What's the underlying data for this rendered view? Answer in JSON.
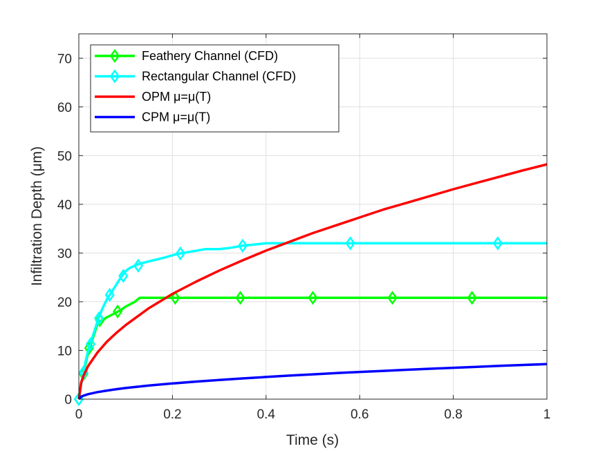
{
  "chart_data": {
    "type": "line",
    "xlabel": "Time (s)",
    "ylabel": "Infiltration Depth (μm)",
    "xlim": [
      0,
      1
    ],
    "ylim": [
      0,
      75
    ],
    "xticks": [
      0,
      0.2,
      0.4,
      0.6,
      0.8,
      1
    ],
    "xtick_labels": [
      "0",
      "0.2",
      "0.4",
      "0.6",
      "0.8",
      "1"
    ],
    "yticks": [
      0,
      10,
      20,
      30,
      40,
      50,
      60,
      70
    ],
    "ytick_labels": [
      "0",
      "10",
      "20",
      "30",
      "40",
      "50",
      "60",
      "70"
    ],
    "grid": true,
    "legend_position": "top-left",
    "series": [
      {
        "name": "Feathery Channel (CFD)",
        "color": "#00ff00",
        "marker": "diamond",
        "x": [
          0,
          0.005,
          0.01,
          0.015,
          0.02,
          0.025,
          0.03,
          0.035,
          0.04,
          0.045,
          0.05,
          0.06,
          0.07,
          0.08,
          0.09,
          0.1,
          0.11,
          0.12,
          0.13,
          0.15,
          0.2,
          0.3,
          0.5,
          0.7,
          0.9,
          1
        ],
        "y": [
          0,
          3,
          5.2,
          7.5,
          9.5,
          11,
          12.5,
          14,
          15.5,
          16,
          16.2,
          16.8,
          17.3,
          17.8,
          18.3,
          19,
          19.5,
          20,
          20.8,
          20.8,
          20.8,
          20.8,
          20.8,
          20.8,
          20.8,
          20.8
        ],
        "marker_x": [
          0,
          0.01,
          0.022,
          0.045,
          0.083,
          0.206,
          0.345,
          0.5,
          0.67,
          0.84
        ],
        "marker_y": [
          0,
          5.2,
          10.5,
          16.2,
          18,
          20.8,
          20.8,
          20.8,
          20.8,
          20.8
        ]
      },
      {
        "name": "Rectangular Channel (CFD)",
        "color": "#00ffff",
        "marker": "diamond",
        "x": [
          0,
          0.005,
          0.01,
          0.015,
          0.02,
          0.025,
          0.03,
          0.04,
          0.05,
          0.06,
          0.07,
          0.08,
          0.09,
          0.1,
          0.11,
          0.12,
          0.13,
          0.15,
          0.18,
          0.21,
          0.24,
          0.27,
          0.3,
          0.32,
          0.35,
          0.38,
          0.4,
          0.45,
          0.5,
          0.6,
          0.8,
          1
        ],
        "y": [
          0,
          3,
          5.5,
          8,
          10,
          11.5,
          13,
          16,
          18.5,
          20.5,
          22,
          23.5,
          25,
          26.3,
          27,
          27.4,
          27.8,
          28.3,
          29,
          29.8,
          30.3,
          30.8,
          30.8,
          31,
          31.5,
          31.8,
          32,
          32,
          32,
          32,
          32,
          32
        ],
        "marker_x": [
          0,
          0.01,
          0.025,
          0.043,
          0.066,
          0.095,
          0.127,
          0.217,
          0.35,
          0.58,
          0.895
        ],
        "marker_y": [
          0,
          5.5,
          11.3,
          16.6,
          21.4,
          25.3,
          27.4,
          29.9,
          31.5,
          32,
          32
        ]
      },
      {
        "name": "OPM μ=μ(T)",
        "color": "#ff0000",
        "marker": "none",
        "function": "48.2*sqrt(x)",
        "x": [
          0,
          0.005,
          0.01,
          0.02,
          0.04,
          0.06,
          0.08,
          0.1,
          0.15,
          0.2,
          0.25,
          0.3,
          0.35,
          0.4,
          0.45,
          0.5,
          0.55,
          0.6,
          0.65,
          0.7,
          0.75,
          0.8,
          0.85,
          0.9,
          0.95,
          1
        ],
        "y": [
          0,
          3.4,
          4.8,
          6.8,
          9.6,
          11.8,
          13.6,
          15.2,
          18.7,
          21.6,
          24.1,
          26.4,
          28.5,
          30.5,
          32.3,
          34.1,
          35.7,
          37.3,
          38.9,
          40.3,
          41.7,
          43.1,
          44.4,
          45.7,
          47,
          48.2
        ]
      },
      {
        "name": "CPM μ=μ(T)",
        "color": "#0000ff",
        "marker": "none",
        "function": "7.2*sqrt(x)",
        "x": [
          0,
          0.005,
          0.01,
          0.02,
          0.04,
          0.06,
          0.08,
          0.1,
          0.15,
          0.2,
          0.25,
          0.3,
          0.35,
          0.4,
          0.45,
          0.5,
          0.55,
          0.6,
          0.65,
          0.7,
          0.75,
          0.8,
          0.85,
          0.9,
          0.95,
          1
        ],
        "y": [
          0,
          0.5,
          0.72,
          1.02,
          1.44,
          1.76,
          2.04,
          2.28,
          2.79,
          3.22,
          3.6,
          3.94,
          4.26,
          4.55,
          4.83,
          5.09,
          5.34,
          5.58,
          5.8,
          6.02,
          6.24,
          6.44,
          6.64,
          6.83,
          7.02,
          7.2
        ]
      }
    ]
  }
}
